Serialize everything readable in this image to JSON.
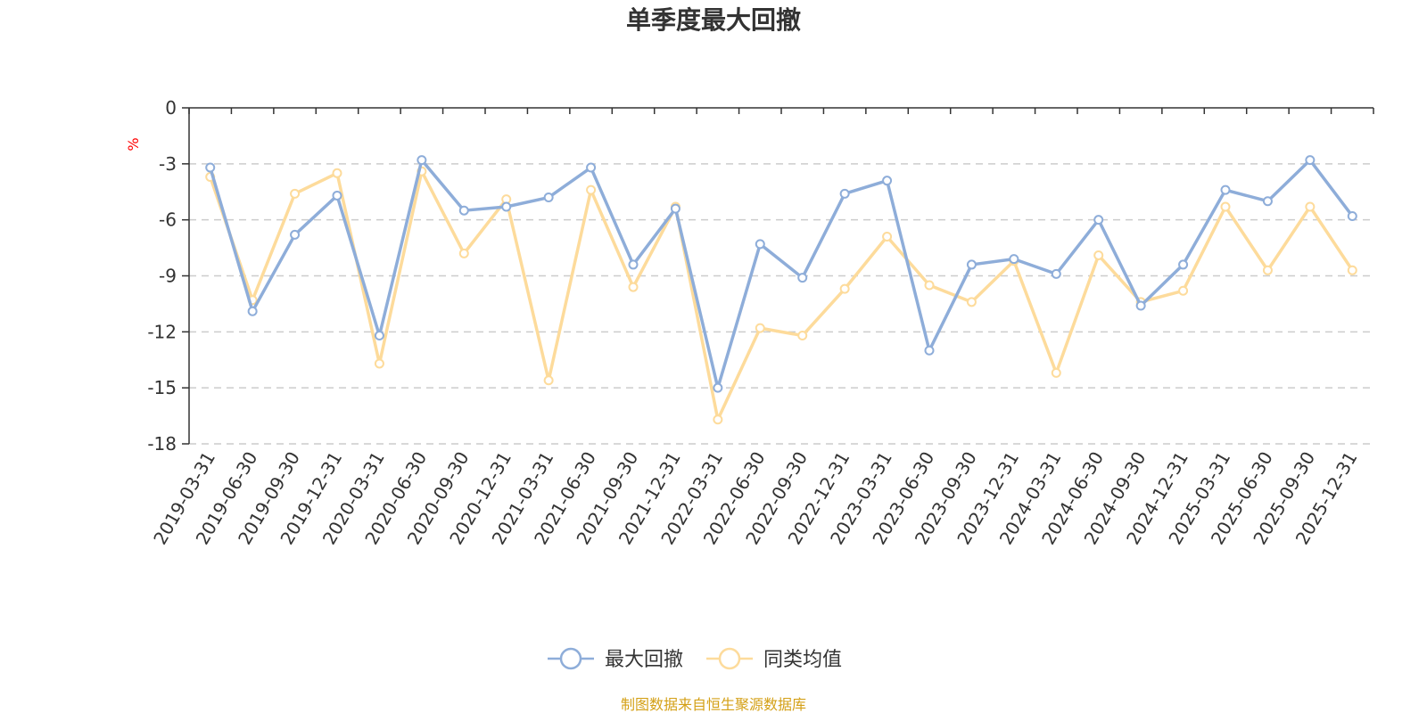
{
  "chart_data": {
    "type": "line",
    "title": "单季度最大回撤",
    "ylabel": "%",
    "xlabel": "",
    "ylim": [
      -18,
      0
    ],
    "yticks": [
      0,
      -3,
      -6,
      -9,
      -12,
      -15,
      -18
    ],
    "ytick_labels": [
      "0",
      "-3",
      "-6",
      "-9",
      "-12",
      "-15",
      "-18"
    ],
    "grid": true,
    "legend_position": "bottom-center",
    "categories": [
      "2019-03-31",
      "2019-06-30",
      "2019-09-30",
      "2019-12-31",
      "2020-03-31",
      "2020-06-30",
      "2020-09-30",
      "2020-12-31",
      "2021-03-31",
      "2021-06-30",
      "2021-09-30",
      "2021-12-31",
      "2022-03-31",
      "2022-06-30",
      "2022-09-30",
      "2022-12-31",
      "2023-03-31",
      "2023-06-30",
      "2023-09-30",
      "2023-12-31",
      "2024-03-31",
      "2024-06-30",
      "2024-09-30",
      "2024-12-31",
      "2025-03-31",
      "2025-06-30",
      "2025-09-30",
      "2025-12-31"
    ],
    "series": [
      {
        "name": "最大回撤",
        "color": "#8eadd9",
        "values": [
          -3.2,
          -10.9,
          -6.8,
          -4.7,
          -12.2,
          -2.8,
          -5.5,
          -5.3,
          -4.8,
          -3.2,
          -8.4,
          -5.4,
          -15.0,
          -7.3,
          -9.1,
          -4.6,
          -3.9,
          -13.0,
          -8.4,
          -8.1,
          -8.9,
          -6.0,
          -10.6,
          -8.4,
          -4.4,
          -5.0,
          -2.8,
          -5.8
        ]
      },
      {
        "name": "同类均值",
        "color": "#fddb9b",
        "values": [
          -3.7,
          -10.3,
          -4.6,
          -3.5,
          -13.7,
          -3.4,
          -7.8,
          -4.9,
          -14.6,
          -4.4,
          -9.6,
          -5.3,
          -16.7,
          -11.8,
          -12.2,
          -9.7,
          -6.9,
          -9.5,
          -10.4,
          -8.2,
          -14.2,
          -7.9,
          -10.4,
          -9.8,
          -5.3,
          -8.7,
          -5.3,
          -8.7
        ]
      }
    ],
    "source": "制图数据来自恒生聚源数据库",
    "source_color": "#d4a017"
  }
}
